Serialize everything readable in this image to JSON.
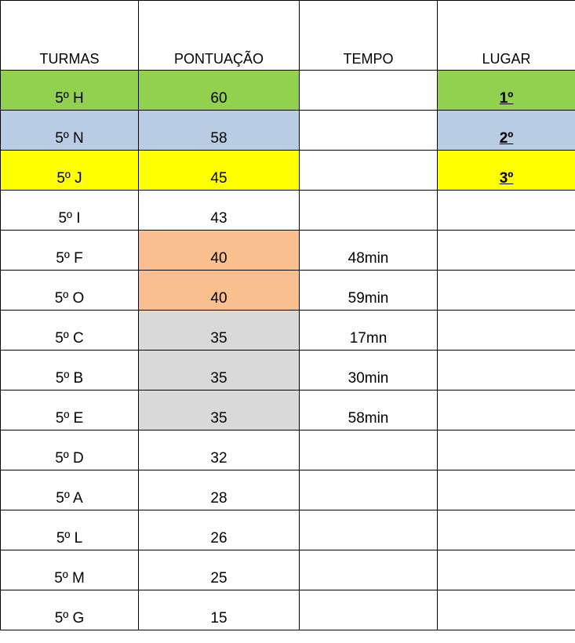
{
  "table": {
    "header": [
      "TURMAS",
      "PONTUAÇÃO",
      "TEMPO",
      "LUGAR"
    ],
    "rows": [
      {
        "cells": [
          "5º H",
          60,
          null,
          "1º"
        ],
        "fills": [
          "#92d050",
          "#92d050",
          null,
          "#92d050"
        ]
      },
      {
        "cells": [
          "5º N",
          58,
          null,
          "2º"
        ],
        "fills": [
          "#b8cce4",
          "#b8cce4",
          null,
          "#b8cce4"
        ]
      },
      {
        "cells": [
          "5º J",
          45,
          null,
          "3º"
        ],
        "fills": [
          "#ffff00",
          "#ffff00",
          null,
          "#ffff00"
        ]
      },
      {
        "cells": [
          "5º I",
          43,
          null,
          null
        ],
        "fills": [
          null,
          null,
          null,
          null
        ]
      },
      {
        "cells": [
          "5º F",
          40,
          "48min",
          null
        ],
        "fills": [
          null,
          "#fabf8f",
          null,
          null
        ]
      },
      {
        "cells": [
          "5º O",
          40,
          "59min",
          null
        ],
        "fills": [
          null,
          "#fabf8f",
          null,
          null
        ]
      },
      {
        "cells": [
          "5º C",
          35,
          "17mn",
          null
        ],
        "fills": [
          null,
          "#d9d9d9",
          null,
          null
        ]
      },
      {
        "cells": [
          "5º B",
          35,
          "30min",
          null
        ],
        "fills": [
          null,
          "#d9d9d9",
          null,
          null
        ]
      },
      {
        "cells": [
          "5º E",
          35,
          "58min",
          null
        ],
        "fills": [
          null,
          "#d9d9d9",
          null,
          null
        ]
      },
      {
        "cells": [
          "5º D",
          32,
          null,
          null
        ],
        "fills": [
          null,
          null,
          null,
          null
        ]
      },
      {
        "cells": [
          "5º A",
          28,
          null,
          null
        ],
        "fills": [
          null,
          null,
          null,
          null
        ]
      },
      {
        "cells": [
          "5º L",
          26,
          null,
          null
        ],
        "fills": [
          null,
          null,
          null,
          null
        ]
      },
      {
        "cells": [
          "5º M",
          25,
          null,
          null
        ],
        "fills": [
          null,
          null,
          null,
          null
        ]
      },
      {
        "cells": [
          "5º G",
          15,
          null,
          null
        ],
        "fills": [
          null,
          null,
          null,
          null
        ]
      }
    ]
  }
}
